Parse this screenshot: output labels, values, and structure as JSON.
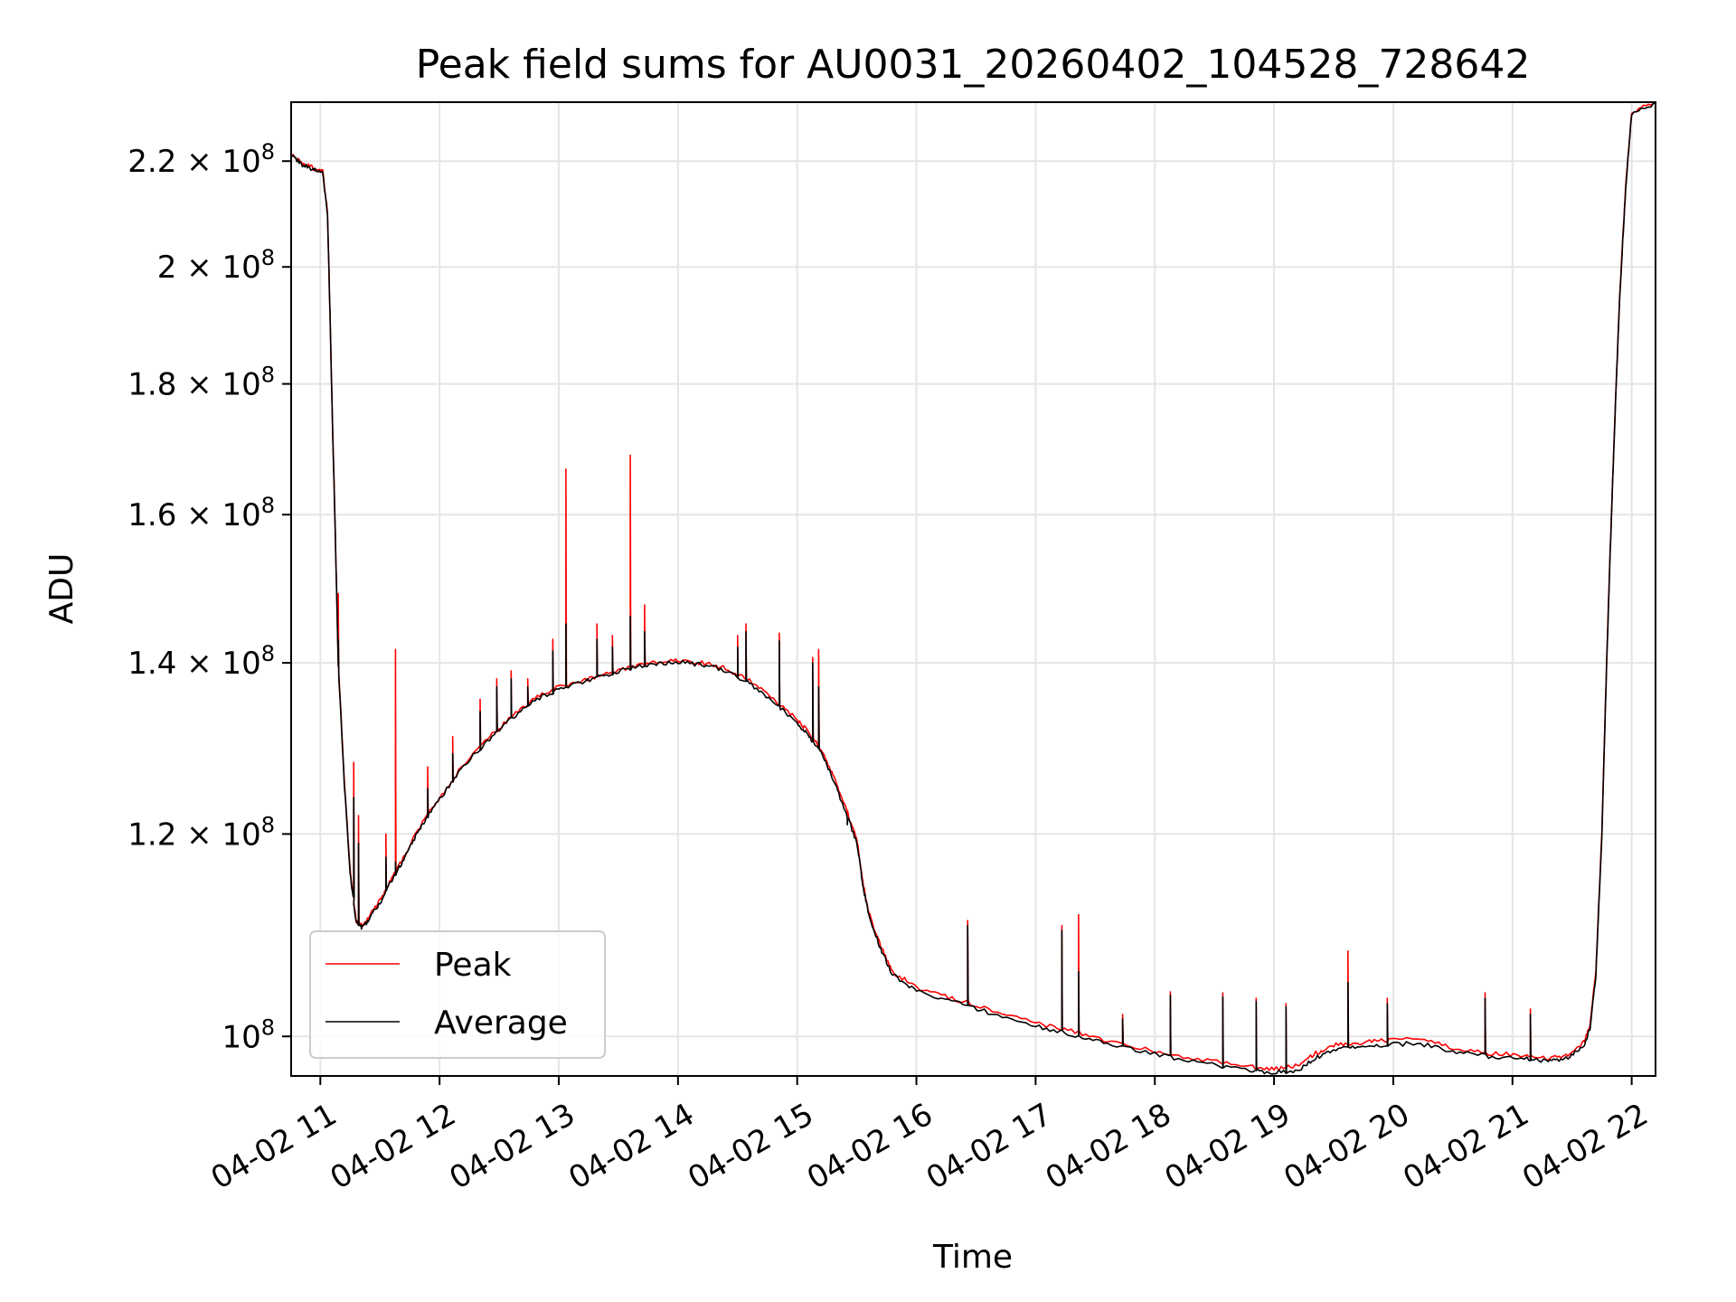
{
  "chart_data": {
    "type": "line",
    "title": "Peak field sums for AU0031_20260402_104528_728642",
    "xlabel": "Time",
    "ylabel": "ADU",
    "x_unit": "hours (local clock, 2026-04-02)",
    "xlim": [
      10.755,
      22.2
    ],
    "ylim": [
      96500000,
      232000000
    ],
    "yscale": "log",
    "grid": true,
    "legend_position": "lower-left",
    "x_ticks": [
      {
        "value": 11,
        "label": "04-02 11"
      },
      {
        "value": 12,
        "label": "04-02 12"
      },
      {
        "value": 13,
        "label": "04-02 13"
      },
      {
        "value": 14,
        "label": "04-02 14"
      },
      {
        "value": 15,
        "label": "04-02 15"
      },
      {
        "value": 16,
        "label": "04-02 16"
      },
      {
        "value": 17,
        "label": "04-02 17"
      },
      {
        "value": 18,
        "label": "04-02 18"
      },
      {
        "value": 19,
        "label": "04-02 19"
      },
      {
        "value": 20,
        "label": "04-02 20"
      },
      {
        "value": 21,
        "label": "04-02 21"
      },
      {
        "value": 22,
        "label": "04-02 22"
      }
    ],
    "y_ticks": [
      {
        "value": 100000000,
        "mantissa": "10",
        "exp": "8"
      },
      {
        "value": 120000000,
        "mantissa": "1.2 × 10",
        "exp": "8"
      },
      {
        "value": 140000000,
        "mantissa": "1.4 × 10",
        "exp": "8"
      },
      {
        "value": 160000000,
        "mantissa": "1.6 × 10",
        "exp": "8"
      },
      {
        "value": 180000000,
        "mantissa": "1.8 × 10",
        "exp": "8"
      },
      {
        "value": 200000000,
        "mantissa": "2 × 10",
        "exp": "8"
      },
      {
        "value": 220000000,
        "mantissa": "2.2 × 10",
        "exp": "8"
      }
    ],
    "series": [
      {
        "name": "Peak",
        "color": "#ff0000",
        "x": [
          10.755,
          10.85,
          10.95,
          11.02,
          11.06,
          11.1,
          11.15,
          11.2,
          11.25,
          11.3,
          11.35,
          11.4,
          11.5,
          11.6,
          11.7,
          11.8,
          11.9,
          12.0,
          12.2,
          12.4,
          12.6,
          12.8,
          13.0,
          13.2,
          13.4,
          13.6,
          13.8,
          14.0,
          14.2,
          14.4,
          14.6,
          14.8,
          15.0,
          15.1,
          15.2,
          15.3,
          15.4,
          15.5,
          15.55,
          15.6,
          15.7,
          15.8,
          16.0,
          16.3,
          16.6,
          17.0,
          17.3,
          17.6,
          18.0,
          18.4,
          18.8,
          19.0,
          19.2,
          19.35,
          19.5,
          19.7,
          19.9,
          20.2,
          20.5,
          20.8,
          21.1,
          21.3,
          21.45,
          21.6,
          21.65,
          21.7,
          21.75,
          21.8,
          21.85,
          21.9,
          21.95,
          22.0,
          22.2
        ],
        "values": [
          221500000,
          219500000,
          218500000,
          218000000,
          210000000,
          175000000,
          140000000,
          126000000,
          116000000,
          111000000,
          110500000,
          111200000,
          113000000,
          115300000,
          117500000,
          120000000,
          122200000,
          124000000,
          127800000,
          130700000,
          133300000,
          135600000,
          137000000,
          137800000,
          138700000,
          139500000,
          140000000,
          140300000,
          140000000,
          139300000,
          137800000,
          135500000,
          133000000,
          131400000,
          129500000,
          126500000,
          123000000,
          119500000,
          115000000,
          111800000,
          108500000,
          106000000,
          104500000,
          103500000,
          102500000,
          101200000,
          100500000,
          99600000,
          98700000,
          97900000,
          97300000,
          97100000,
          97400000,
          98500000,
          99200000,
          99400000,
          99600000,
          99800000,
          99000000,
          98500000,
          98300000,
          98100000,
          98300000,
          99500000,
          101000000,
          106000000,
          120000000,
          145000000,
          170000000,
          195000000,
          215000000,
          230000000,
          232000000
        ]
      },
      {
        "name": "Average",
        "color": "#000000",
        "x": [
          10.755,
          10.85,
          10.95,
          11.02,
          11.06,
          11.1,
          11.15,
          11.2,
          11.25,
          11.3,
          11.35,
          11.4,
          11.5,
          11.6,
          11.7,
          11.8,
          11.9,
          12.0,
          12.2,
          12.4,
          12.6,
          12.8,
          13.0,
          13.2,
          13.4,
          13.6,
          13.8,
          14.0,
          14.2,
          14.4,
          14.6,
          14.8,
          15.0,
          15.1,
          15.2,
          15.3,
          15.4,
          15.5,
          15.55,
          15.6,
          15.7,
          15.8,
          16.0,
          16.3,
          16.6,
          17.0,
          17.3,
          17.6,
          18.0,
          18.4,
          18.8,
          19.0,
          19.2,
          19.35,
          19.5,
          19.7,
          19.9,
          20.2,
          20.5,
          20.8,
          21.1,
          21.3,
          21.45,
          21.6,
          21.65,
          21.7,
          21.75,
          21.8,
          21.85,
          21.9,
          21.95,
          22.0,
          22.2
        ],
        "values": [
          221300000,
          219300000,
          218300000,
          217800000,
          209800000,
          174800000,
          139800000,
          125800000,
          115800000,
          110800000,
          110300000,
          111000000,
          112800000,
          115100000,
          117300000,
          119800000,
          122000000,
          123800000,
          127600000,
          130500000,
          133100000,
          135400000,
          136800000,
          137600000,
          138500000,
          139300000,
          139800000,
          140100000,
          139800000,
          139000000,
          137500000,
          135200000,
          132600000,
          131000000,
          129100000,
          126100000,
          122600000,
          119100000,
          114700000,
          111500000,
          108200000,
          105700000,
          104200000,
          103200000,
          102200000,
          100900000,
          100200000,
          99300000,
          98400000,
          97600000,
          97000000,
          96800000,
          97000000,
          98100000,
          98800000,
          99000000,
          99200000,
          99400000,
          98700000,
          98200000,
          98000000,
          97800000,
          98000000,
          99200000,
          100700000,
          105700000,
          119700000,
          144700000,
          169700000,
          194700000,
          214700000,
          229700000,
          231800000
        ]
      }
    ],
    "spikes": [
      {
        "x": 11.15,
        "peak": 149000000,
        "average": 143000000
      },
      {
        "x": 11.28,
        "peak": 128000000,
        "average": 124000000
      },
      {
        "x": 11.32,
        "peak": 122000000,
        "average": 119000000
      },
      {
        "x": 11.55,
        "peak": 120000000,
        "average": 117500000
      },
      {
        "x": 11.63,
        "peak": 141700000,
        "average": 117000000
      },
      {
        "x": 11.9,
        "peak": 127500000,
        "average": 125000000
      },
      {
        "x": 12.11,
        "peak": 131000000,
        "average": 129000000
      },
      {
        "x": 12.34,
        "peak": 135500000,
        "average": 134000000
      },
      {
        "x": 12.48,
        "peak": 138000000,
        "average": 137000000
      },
      {
        "x": 12.6,
        "peak": 139000000,
        "average": 138000000
      },
      {
        "x": 12.74,
        "peak": 138000000,
        "average": 137000000
      },
      {
        "x": 12.95,
        "peak": 143000000,
        "average": 141500000
      },
      {
        "x": 13.06,
        "peak": 166700000,
        "average": 145000000
      },
      {
        "x": 13.32,
        "peak": 145000000,
        "average": 143000000
      },
      {
        "x": 13.45,
        "peak": 143500000,
        "average": 142000000
      },
      {
        "x": 13.6,
        "peak": 168800000,
        "average": 146000000
      },
      {
        "x": 13.72,
        "peak": 147500000,
        "average": 144000000
      },
      {
        "x": 14.5,
        "peak": 143500000,
        "average": 142000000
      },
      {
        "x": 14.57,
        "peak": 145000000,
        "average": 144000000
      },
      {
        "x": 14.85,
        "peak": 143800000,
        "average": 142800000
      },
      {
        "x": 15.13,
        "peak": 140700000,
        "average": 140000000
      },
      {
        "x": 15.18,
        "peak": 141700000,
        "average": 137000000
      },
      {
        "x": 15.42,
        "peak": 122000000,
        "average": 121000000
      },
      {
        "x": 16.43,
        "peak": 111000000,
        "average": 110500000
      },
      {
        "x": 17.22,
        "peak": 110500000,
        "average": 110000000
      },
      {
        "x": 17.36,
        "peak": 111600000,
        "average": 106000000
      },
      {
        "x": 17.73,
        "peak": 102000000,
        "average": 101600000
      },
      {
        "x": 18.13,
        "peak": 104100000,
        "average": 103800000
      },
      {
        "x": 18.57,
        "peak": 104000000,
        "average": 103600000
      },
      {
        "x": 18.85,
        "peak": 103500000,
        "average": 103200000
      },
      {
        "x": 19.1,
        "peak": 103000000,
        "average": 102700000
      },
      {
        "x": 19.62,
        "peak": 108000000,
        "average": 105000000
      },
      {
        "x": 19.95,
        "peak": 103500000,
        "average": 103000000
      },
      {
        "x": 20.77,
        "peak": 104000000,
        "average": 103500000
      },
      {
        "x": 21.15,
        "peak": 102500000,
        "average": 102000000
      }
    ]
  }
}
